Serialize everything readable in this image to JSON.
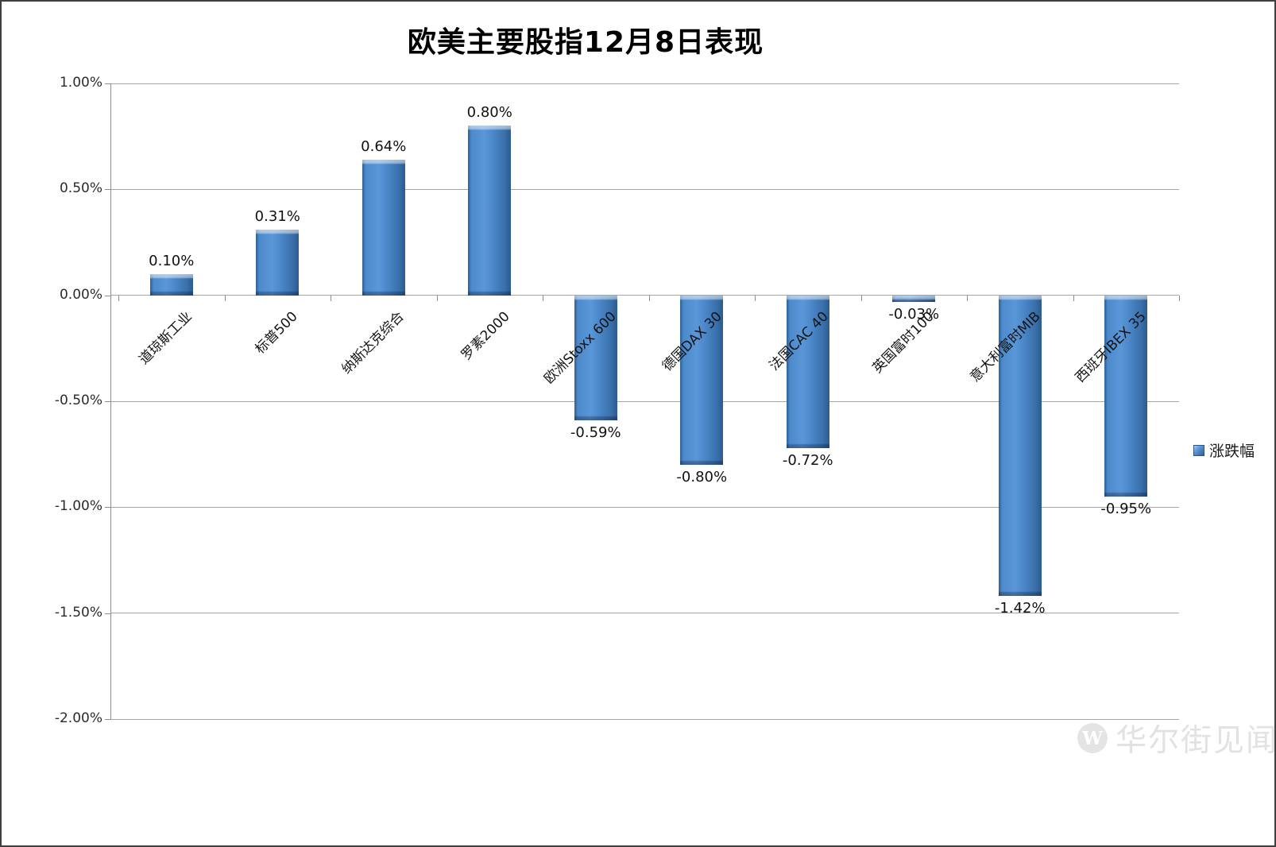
{
  "chart_data": {
    "type": "bar",
    "title": "欧美主要股指12月8日表现",
    "categories": [
      "道琼斯工业",
      "标普500",
      "纳斯达克综合",
      "罗素2000",
      "欧洲Stoxx 600",
      "德国DAX 30",
      "法国CAC 40",
      "英国富时100",
      "意大利富时MIB",
      "西班牙IBEX 35"
    ],
    "series": [
      {
        "name": "涨跌幅",
        "values": [
          0.1,
          0.31,
          0.64,
          0.8,
          -0.59,
          -0.8,
          -0.72,
          -0.03,
          -1.42,
          -0.95
        ],
        "labels": [
          "0.10%",
          "0.31%",
          "0.64%",
          "0.80%",
          "-0.59%",
          "-0.80%",
          "-0.72%",
          "-0.03%",
          "-1.42%",
          "-0.95%"
        ]
      }
    ],
    "ylim": [
      -2.0,
      1.0
    ],
    "yticks": [
      {
        "value": 1.0,
        "label": "1.00%"
      },
      {
        "value": 0.5,
        "label": "0.50%"
      },
      {
        "value": 0.0,
        "label": "0.00%"
      },
      {
        "value": -0.5,
        "label": "-0.50%"
      },
      {
        "value": -1.0,
        "label": "-1.00%"
      },
      {
        "value": -1.5,
        "label": "-1.50%"
      },
      {
        "value": -2.0,
        "label": "-2.00%"
      }
    ],
    "grid": true,
    "legend_position": "right"
  },
  "legend": {
    "label": "涨跌幅"
  },
  "watermark": {
    "logo_letter": "W",
    "text": "华尔街见闻"
  },
  "colors": {
    "bar_main": "#4B87C9",
    "bar_edge_dark": "#2B5B8F",
    "bar_highlight": "#A8CBEE",
    "gridline": "#A6A6A6",
    "axis": "#8C8C8C",
    "watermark": "#E2E2E2",
    "border": "#3F3F3F"
  }
}
